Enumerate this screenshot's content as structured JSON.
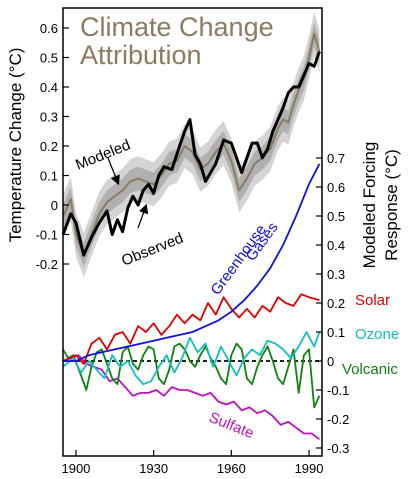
{
  "chart_data": {
    "type": "line",
    "title": "Climate Change\nAttribution",
    "x_ticks": [
      1900,
      1930,
      1960,
      1990
    ],
    "xlim": [
      1895,
      1995
    ],
    "y_left": {
      "label": "Temperature Change (°C)",
      "ticks": [
        "0.6",
        "0.5",
        "0.4",
        "0.3",
        "0.2",
        "0.1",
        "0",
        "-0.1",
        "-0.2"
      ],
      "ylim": [
        -0.27,
        0.65
      ]
    },
    "y_right": {
      "label": "Modeled Forcing\nResponse (°C)",
      "ticks": [
        "0.7",
        "0.6",
        "0.5",
        "0.4",
        "0.3",
        "0.2",
        "0.1",
        "0",
        "-0.1",
        "-0.2",
        "-0.3"
      ],
      "ylim": [
        -0.3,
        0.75
      ]
    },
    "series": [
      {
        "name": "Observed",
        "axis": "left",
        "color": "#000000",
        "x": [
          1895,
          1898,
          1900,
          1903,
          1906,
          1909,
          1912,
          1914,
          1916,
          1918,
          1920,
          1922,
          1924,
          1926,
          1928,
          1930,
          1932,
          1934,
          1937,
          1940,
          1942,
          1944,
          1946,
          1948,
          1950,
          1952,
          1954,
          1957,
          1960,
          1962,
          1964,
          1966,
          1968,
          1970,
          1972,
          1974,
          1976,
          1978,
          1980,
          1982,
          1984,
          1986,
          1988,
          1990,
          1992,
          1994
        ],
        "y": [
          -0.1,
          -0.03,
          -0.06,
          -0.17,
          -0.11,
          -0.06,
          -0.02,
          -0.1,
          -0.05,
          -0.09,
          -0.01,
          0.03,
          0.0,
          0.05,
          0.07,
          0.04,
          0.1,
          0.13,
          0.12,
          0.2,
          0.25,
          0.29,
          0.17,
          0.14,
          0.08,
          0.11,
          0.14,
          0.22,
          0.21,
          0.16,
          0.11,
          0.16,
          0.21,
          0.21,
          0.16,
          0.19,
          0.25,
          0.29,
          0.33,
          0.38,
          0.4,
          0.4,
          0.44,
          0.48,
          0.47,
          0.52
        ]
      },
      {
        "name": "Modeled",
        "axis": "left",
        "color": "#8b7b60",
        "x": [
          1895,
          1898,
          1900,
          1903,
          1906,
          1909,
          1912,
          1915,
          1918,
          1921,
          1924,
          1927,
          1930,
          1933,
          1936,
          1939,
          1942,
          1945,
          1948,
          1951,
          1954,
          1957,
          1960,
          1963,
          1966,
          1969,
          1972,
          1975,
          1978,
          1980,
          1982,
          1984,
          1986,
          1988,
          1990,
          1992,
          1994
        ],
        "y": [
          -0.04,
          0.02,
          -0.1,
          -0.17,
          -0.1,
          -0.03,
          0.01,
          0.03,
          0.05,
          0.08,
          0.09,
          0.08,
          0.07,
          0.1,
          0.14,
          0.15,
          0.2,
          0.18,
          0.12,
          0.14,
          0.18,
          0.21,
          0.15,
          0.05,
          0.09,
          0.14,
          0.16,
          0.19,
          0.26,
          0.29,
          0.28,
          0.34,
          0.39,
          0.43,
          0.5,
          0.58,
          0.52
        ]
      },
      {
        "name": "Greenhouse Gases",
        "axis": "right",
        "color": "#1010e0",
        "x": [
          1895,
          1900,
          1905,
          1910,
          1915,
          1920,
          1925,
          1930,
          1935,
          1940,
          1945,
          1950,
          1955,
          1960,
          1965,
          1970,
          1975,
          1980,
          1985,
          1990,
          1994
        ],
        "y": [
          0.0,
          0.0,
          0.02,
          0.03,
          0.04,
          0.05,
          0.06,
          0.07,
          0.08,
          0.09,
          0.1,
          0.12,
          0.14,
          0.17,
          0.21,
          0.26,
          0.32,
          0.4,
          0.5,
          0.61,
          0.68
        ]
      },
      {
        "name": "Solar",
        "axis": "right",
        "color": "#e00000",
        "x": [
          1895,
          1900,
          1903,
          1906,
          1909,
          1912,
          1915,
          1918,
          1921,
          1924,
          1927,
          1930,
          1933,
          1936,
          1939,
          1942,
          1945,
          1948,
          1951,
          1954,
          1957,
          1960,
          1963,
          1966,
          1969,
          1972,
          1975,
          1978,
          1981,
          1984,
          1987,
          1990,
          1994
        ],
        "y": [
          0.0,
          0.02,
          -0.01,
          0.06,
          0.08,
          0.04,
          0.09,
          0.1,
          0.06,
          0.12,
          0.1,
          0.13,
          0.09,
          0.12,
          0.16,
          0.13,
          0.16,
          0.14,
          0.2,
          0.16,
          0.22,
          0.18,
          0.15,
          0.18,
          0.15,
          0.19,
          0.17,
          0.22,
          0.2,
          0.19,
          0.23,
          0.22,
          0.21
        ]
      },
      {
        "name": "Ozone",
        "axis": "right",
        "color": "#10c0c0",
        "x": [
          1895,
          1899,
          1902,
          1905,
          1908,
          1911,
          1914,
          1917,
          1920,
          1923,
          1926,
          1929,
          1932,
          1935,
          1938,
          1941,
          1944,
          1947,
          1950,
          1953,
          1956,
          1959,
          1962,
          1965,
          1968,
          1971,
          1974,
          1977,
          1980,
          1983,
          1986,
          1989,
          1992,
          1994
        ],
        "y": [
          -0.02,
          0.01,
          -0.04,
          0.0,
          -0.03,
          -0.06,
          0.02,
          -0.02,
          0.0,
          -0.05,
          -0.08,
          -0.07,
          -0.02,
          0.02,
          -0.04,
          0.01,
          0.08,
          0.03,
          0.06,
          -0.02,
          0.05,
          0.0,
          -0.05,
          0.01,
          0.04,
          0.02,
          0.07,
          0.06,
          0.04,
          0.01,
          0.05,
          0.1,
          0.05,
          0.1
        ]
      },
      {
        "name": "Volcanic",
        "axis": "right",
        "color": "#108010",
        "x": [
          1895,
          1897,
          1899,
          1902,
          1904,
          1906,
          1908,
          1910,
          1912,
          1914,
          1916,
          1918,
          1920,
          1922,
          1924,
          1926,
          1928,
          1930,
          1932,
          1934,
          1936,
          1938,
          1940,
          1942,
          1944,
          1946,
          1948,
          1950,
          1952,
          1954,
          1956,
          1958,
          1960,
          1962,
          1964,
          1966,
          1968,
          1970,
          1972,
          1974,
          1976,
          1978,
          1980,
          1982,
          1984,
          1986,
          1988,
          1990,
          1992,
          1994
        ],
        "y": [
          0.04,
          0.01,
          0.02,
          -0.05,
          -0.1,
          -0.02,
          0.03,
          0.04,
          -0.01,
          -0.06,
          -0.08,
          0.03,
          0.05,
          -0.01,
          -0.03,
          0.02,
          0.05,
          0.04,
          -0.06,
          -0.08,
          -0.03,
          0.05,
          0.06,
          0.04,
          0.0,
          -0.02,
          0.02,
          0.05,
          0.01,
          -0.02,
          -0.06,
          -0.08,
          0.02,
          0.06,
          0.04,
          -0.06,
          -0.08,
          -0.02,
          0.02,
          0.05,
          0.0,
          -0.06,
          -0.08,
          -0.02,
          0.04,
          -0.11,
          0.02,
          0.04,
          -0.16,
          -0.12
        ]
      },
      {
        "name": "Sulfate",
        "axis": "right",
        "color": "#c010c0",
        "x": [
          1895,
          1898,
          1901,
          1904,
          1907,
          1910,
          1913,
          1916,
          1919,
          1922,
          1925,
          1928,
          1931,
          1934,
          1937,
          1940,
          1943,
          1946,
          1949,
          1952,
          1955,
          1958,
          1961,
          1964,
          1967,
          1970,
          1973,
          1976,
          1979,
          1982,
          1985,
          1988,
          1991,
          1994
        ],
        "y": [
          0.0,
          0.01,
          0.02,
          -0.01,
          -0.02,
          -0.03,
          -0.07,
          -0.06,
          -0.09,
          -0.12,
          -0.11,
          -0.11,
          -0.1,
          -0.12,
          -0.09,
          -0.1,
          -0.1,
          -0.11,
          -0.12,
          -0.11,
          -0.14,
          -0.15,
          -0.14,
          -0.17,
          -0.16,
          -0.18,
          -0.17,
          -0.19,
          -0.22,
          -0.21,
          -0.23,
          -0.25,
          -0.25,
          -0.27
        ]
      }
    ],
    "uncertainty_band": {
      "color": "#b0b0b0",
      "half_width_inner": 0.04,
      "half_width_outer": 0.075
    },
    "zero_line": {
      "axis": "right",
      "style": "dashed"
    },
    "annotations": [
      {
        "text": "Modeled",
        "color": "#000000"
      },
      {
        "text": "Observed",
        "color": "#000000"
      },
      {
        "text": "Greenhouse",
        "color": "#1010e0"
      },
      {
        "text": "Gases",
        "color": "#1010e0"
      },
      {
        "text": "Solar",
        "color": "#e00000"
      },
      {
        "text": "Ozone",
        "color": "#10c0c0"
      },
      {
        "text": "Volcanic",
        "color": "#108010"
      },
      {
        "text": "Sulfate",
        "color": "#c010c0"
      }
    ],
    "title_color": "#8b7b60"
  }
}
